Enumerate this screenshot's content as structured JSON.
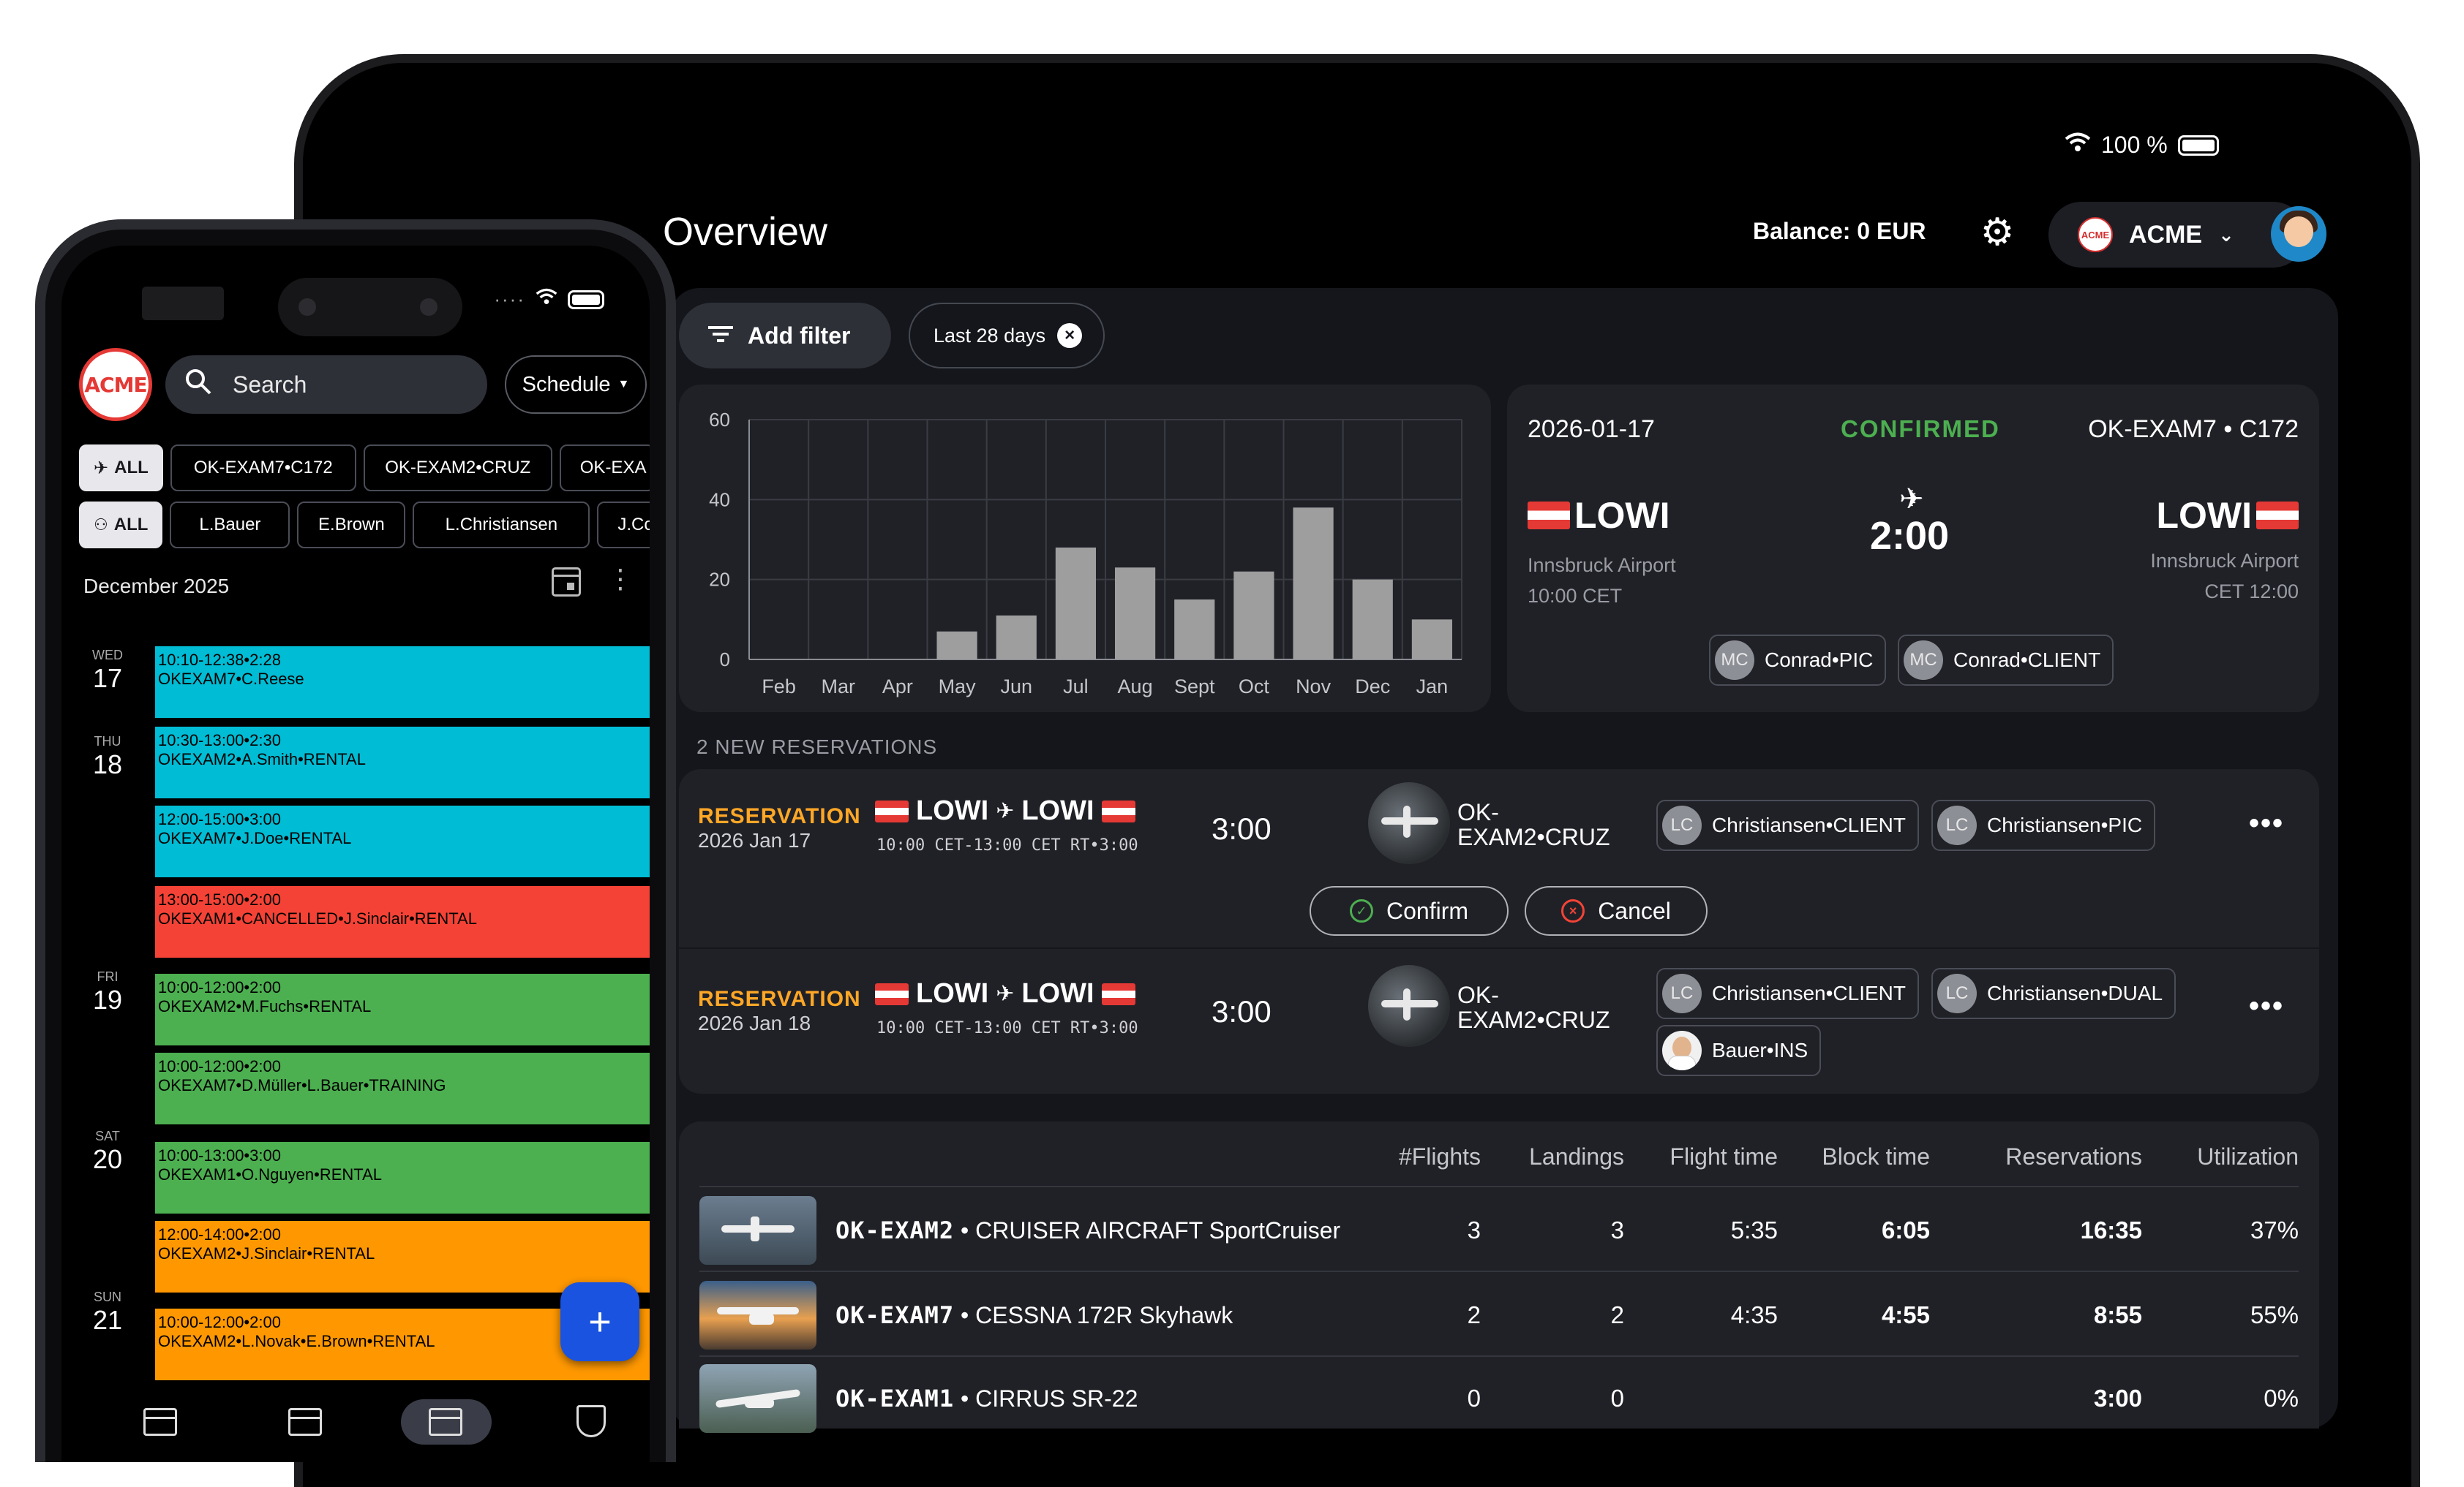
{
  "tablet": {
    "status": {
      "battery": "100 %"
    },
    "title": "Overview",
    "balance": "Balance: 0 EUR",
    "org": "ACME",
    "filters": {
      "add_filter": "Add filter",
      "chip": "Last 28 days"
    },
    "chart_data": {
      "type": "bar",
      "categories": [
        "Feb",
        "Mar",
        "Apr",
        "May",
        "Jun",
        "Jul",
        "Aug",
        "Sept",
        "Oct",
        "Nov",
        "Dec",
        "Jan"
      ],
      "values": [
        0,
        0,
        0,
        7,
        11,
        28,
        23,
        15,
        22,
        38,
        20,
        10
      ],
      "ylim": [
        0,
        60
      ],
      "yticks": [
        "0",
        "20",
        "40",
        "60"
      ],
      "grid": true,
      "bar_color": "#9e9e9e"
    },
    "reservation_card": {
      "date": "2026-01-17",
      "status": "CONFIRMED",
      "aircraft": "OK-EXAM7 • C172",
      "from_code": "LOWI",
      "from_name": "Innsbruck Airport",
      "from_time": "10:00 CET",
      "duration": "2:00",
      "to_code": "LOWI",
      "to_name": "Innsbruck Airport",
      "to_time": "CET 12:00",
      "people": [
        {
          "initials": "MC",
          "label": "Conrad•PIC"
        },
        {
          "initials": "MC",
          "label": "Conrad•CLIENT"
        }
      ]
    },
    "new_reservations_label": "2 NEW RESERVATIONS",
    "reservations": [
      {
        "type": "RESERVATION",
        "date": "2026 Jan 17",
        "from": "LOWI",
        "to": "LOWI",
        "times": "10:00 CET-13:00 CET RT•3:00",
        "duration": "3:00",
        "aircraft_line1": "OK-",
        "aircraft_line2": "EXAM2•CRUZ",
        "people": [
          {
            "initials": "LC",
            "label": "Christiansen•CLIENT"
          },
          {
            "initials": "LC",
            "label": "Christiansen•PIC"
          }
        ],
        "confirm": "Confirm",
        "cancel": "Cancel"
      },
      {
        "type": "RESERVATION",
        "date": "2026 Jan 18",
        "from": "LOWI",
        "to": "LOWI",
        "times": "10:00 CET-13:00 CET RT•3:00",
        "duration": "3:00",
        "aircraft_line1": "OK-",
        "aircraft_line2": "EXAM2•CRUZ",
        "people": [
          {
            "initials": "LC",
            "label": "Christiansen•CLIENT"
          },
          {
            "initials": "LC",
            "label": "Christiansen•DUAL"
          },
          {
            "initials": "",
            "label": "Bauer•INS"
          }
        ]
      }
    ],
    "stats": {
      "headers": [
        "#Flights",
        "Landings",
        "Flight time",
        "Block time",
        "Reservations",
        "Utilization"
      ],
      "rows": [
        {
          "reg": "OK-EXAM2",
          "model": "• CRUISER AIRCRAFT SportCruiser",
          "flights": "3",
          "landings": "3",
          "flight_time": "5:35",
          "block_time": "6:05",
          "reservations": "16:35",
          "utilization": "37%"
        },
        {
          "reg": "OK-EXAM7",
          "model": "• CESSNA 172R Skyhawk",
          "flights": "2",
          "landings": "2",
          "flight_time": "4:35",
          "block_time": "4:55",
          "reservations": "8:55",
          "utilization": "55%"
        },
        {
          "reg": "OK-EXAM1",
          "model": "• CIRRUS SR-22",
          "flights": "0",
          "landings": "0",
          "flight_time": "",
          "block_time": "",
          "reservations": "3:00",
          "utilization": "0%"
        }
      ]
    }
  },
  "phone": {
    "logo": "ACME",
    "search_placeholder": "Search",
    "schedule": "Schedule",
    "aircraft_chips": [
      "ALL",
      "OK-EXAM7•C172",
      "OK-EXAM2•CRUZ",
      "OK-EXA"
    ],
    "people_chips": [
      "ALL",
      "L.Bauer",
      "E.Brown",
      "L.Christiansen",
      "J.Corn"
    ],
    "month": "December 2025",
    "days": [
      {
        "dow": "WED",
        "num": "17"
      },
      {
        "dow": "THU",
        "num": "18"
      },
      {
        "dow": "FRI",
        "num": "19"
      },
      {
        "dow": "SAT",
        "num": "20"
      },
      {
        "dow": "SUN",
        "num": "21"
      }
    ],
    "events": [
      {
        "time": "10:10-12:38•2:28",
        "desc": "OKEXAM7•C.Reese",
        "color": "#00bcd4"
      },
      {
        "time": "10:30-13:00•2:30",
        "desc": "OKEXAM2•A.Smith•RENTAL",
        "color": "#00bcd4"
      },
      {
        "time": "12:00-15:00•3:00",
        "desc": "OKEXAM7•J.Doe•RENTAL",
        "color": "#00bcd4"
      },
      {
        "time": "13:00-15:00•2:00",
        "desc": "OKEXAM1•CANCELLED•J.Sinclair•RENTAL",
        "color": "#f44336"
      },
      {
        "time": "10:00-12:00•2:00",
        "desc": "OKEXAM2•M.Fuchs•RENTAL",
        "color": "#4caf50"
      },
      {
        "time": "10:00-12:00•2:00",
        "desc": "OKEXAM7•D.Müller•L.Bauer•TRAINING",
        "color": "#4caf50"
      },
      {
        "time": "10:00-13:00•3:00",
        "desc": "OKEXAM1•O.Nguyen•RENTAL",
        "color": "#4caf50"
      },
      {
        "time": "12:00-14:00•2:00",
        "desc": "OKEXAM2•J.Sinclair•RENTAL",
        "color": "#ff9800"
      },
      {
        "time": "10:00-12:00•2:00",
        "desc": "OKEXAM2•L.Novak•E.Brown•RENTAL",
        "color": "#ff9800"
      }
    ]
  }
}
